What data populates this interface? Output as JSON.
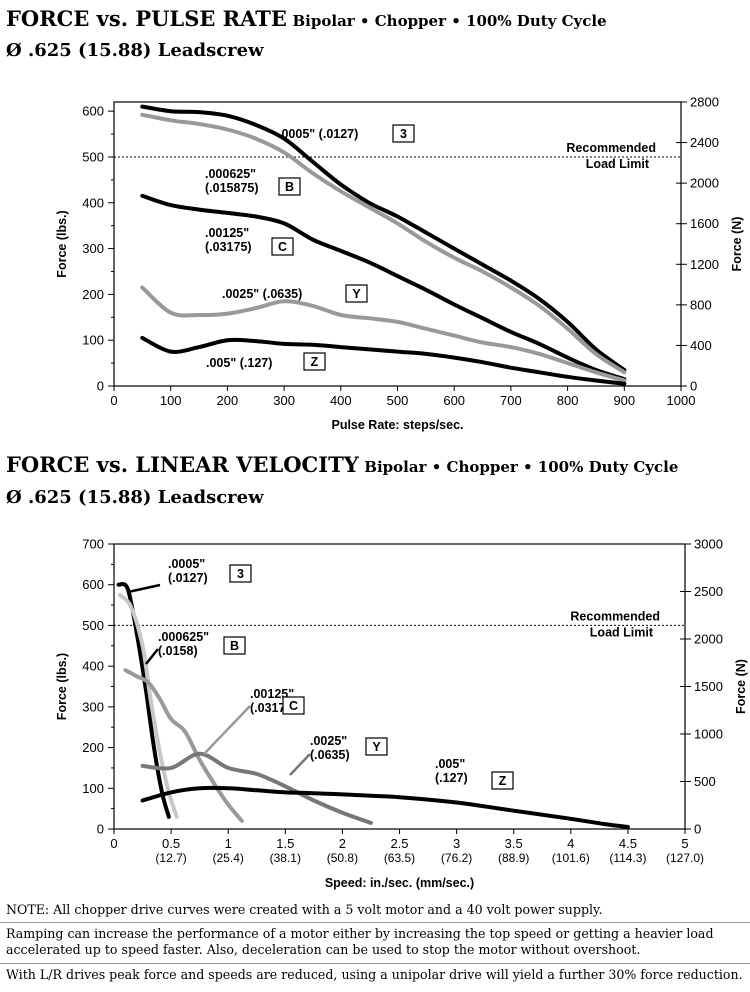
{
  "charts": [
    {
      "title_main": "FORCE vs. PULSE RATE",
      "title_sub": "Bipolar • Chopper • 100% Duty Cycle",
      "title_line2": "Ø .625 (15.88) Leadscrew"
    },
    {
      "title_main": "FORCE vs. LINEAR VELOCITY",
      "title_sub": "Bipolar • Chopper • 100% Duty Cycle",
      "title_line2": "Ø .625 (15.88) Leadscrew"
    }
  ],
  "chart_data": [
    {
      "type": "line",
      "title": "FORCE vs. PULSE RATE",
      "xlabel": "Pulse Rate:  steps/sec.",
      "ylabel": "Force (lbs.)",
      "y2label": "Force (N)",
      "xlim": [
        0,
        1000
      ],
      "ylim": [
        0,
        620
      ],
      "y2lim": [
        0,
        2800
      ],
      "xticks": [
        "0",
        "100",
        "200",
        "300",
        "400",
        "500",
        "600",
        "700",
        "800",
        "900",
        "1000"
      ],
      "yticks": [
        "0",
        "100",
        "200",
        "300",
        "400",
        "500",
        "600"
      ],
      "y2ticks": [
        "0",
        "400",
        "800",
        "1200",
        "1600",
        "2000",
        "2400",
        "2800"
      ],
      "reference_line": {
        "y": 500,
        "label_line1": "Recommended",
        "label_line2": "Load Limit"
      },
      "series": [
        {
          "name": "3",
          "label": ".0005\" (.0127)",
          "color": "#000000",
          "x": [
            50,
            100,
            150,
            200,
            250,
            300,
            350,
            400,
            450,
            500,
            550,
            600,
            650,
            700,
            750,
            800,
            850,
            900
          ],
          "y": [
            610,
            600,
            598,
            590,
            570,
            540,
            490,
            440,
            400,
            370,
            335,
            300,
            265,
            230,
            190,
            140,
            80,
            35
          ]
        },
        {
          "name": "B",
          "label": ".000625\" (.015875)",
          "color": "#999999",
          "x": [
            50,
            100,
            150,
            200,
            250,
            300,
            350,
            400,
            450,
            500,
            550,
            600,
            650,
            700,
            750,
            800,
            850,
            900
          ],
          "y": [
            592,
            580,
            572,
            560,
            540,
            510,
            465,
            425,
            390,
            355,
            315,
            280,
            250,
            215,
            175,
            125,
            70,
            30
          ]
        },
        {
          "name": "C",
          "label": ".00125\" (.03175)",
          "color": "#000000",
          "x": [
            50,
            100,
            150,
            200,
            250,
            300,
            350,
            400,
            450,
            500,
            550,
            600,
            650,
            700,
            750,
            800,
            850,
            900
          ],
          "y": [
            415,
            395,
            385,
            378,
            370,
            355,
            320,
            295,
            270,
            240,
            210,
            178,
            148,
            118,
            92,
            62,
            35,
            15
          ]
        },
        {
          "name": "Y",
          "label": ".0025\" (.0635)",
          "color": "#999999",
          "x": [
            50,
            100,
            150,
            200,
            250,
            300,
            350,
            400,
            450,
            500,
            550,
            600,
            650,
            700,
            750,
            800,
            850,
            900
          ],
          "y": [
            215,
            160,
            155,
            158,
            170,
            185,
            175,
            155,
            148,
            140,
            125,
            110,
            95,
            85,
            70,
            50,
            30,
            12
          ]
        },
        {
          "name": "Z",
          "label": ".005\" (.127)",
          "color": "#000000",
          "x": [
            50,
            100,
            150,
            200,
            250,
            300,
            350,
            400,
            450,
            500,
            550,
            600,
            650,
            700,
            750,
            800,
            850,
            900
          ],
          "y": [
            105,
            75,
            85,
            100,
            98,
            92,
            90,
            85,
            80,
            75,
            70,
            62,
            52,
            40,
            30,
            20,
            12,
            5
          ]
        }
      ]
    },
    {
      "type": "line",
      "title": "FORCE vs. LINEAR VELOCITY",
      "xlabel": "Speed:  in./sec.  (mm/sec.)",
      "ylabel": "Force (lbs.)",
      "y2label": "Force (N)",
      "xlim": [
        0,
        5
      ],
      "ylim": [
        0,
        700
      ],
      "y2lim": [
        0,
        3000
      ],
      "xticks": [
        "0",
        "0.5",
        "1",
        "1.5",
        "2",
        "2.5",
        "3",
        "3.5",
        "4",
        "4.5",
        "5"
      ],
      "xticks_mm": [
        "",
        "(12.7)",
        "(25.4)",
        "(38.1)",
        "(50.8)",
        "(63.5)",
        "(76.2)",
        "(88.9)",
        "(101.6)",
        "(114.3)",
        "(127.0)"
      ],
      "yticks": [
        "0",
        "100",
        "200",
        "300",
        "400",
        "500",
        "600",
        "700"
      ],
      "y2ticks": [
        "0",
        "500",
        "1000",
        "1500",
        "2000",
        "2500",
        "3000"
      ],
      "reference_line": {
        "y": 500,
        "label_line1": "Recommended",
        "label_line2": "Load Limit"
      },
      "series": [
        {
          "name": "3",
          "label": ".0005\" (.0127)",
          "color": "#000000",
          "x": [
            0.04,
            0.12,
            0.2,
            0.28,
            0.35,
            0.42,
            0.48
          ],
          "y": [
            600,
            590,
            480,
            340,
            200,
            90,
            30
          ]
        },
        {
          "name": "B",
          "label": ".000625\" (.0158)",
          "color": "#c8c8c8",
          "x": [
            0.05,
            0.15,
            0.25,
            0.32,
            0.4,
            0.48,
            0.55
          ],
          "y": [
            575,
            545,
            450,
            320,
            190,
            90,
            30
          ]
        },
        {
          "name": "C",
          "label": ".00125\" (.0317)",
          "color": "#999999",
          "x": [
            0.1,
            0.2,
            0.3,
            0.4,
            0.5,
            0.62,
            0.75,
            0.88,
            1.0,
            1.12
          ],
          "y": [
            390,
            375,
            360,
            320,
            270,
            240,
            170,
            110,
            60,
            20
          ]
        },
        {
          "name": "Y",
          "label": ".0025\" (.0635)",
          "color": "#777777",
          "x": [
            0.25,
            0.5,
            0.75,
            1.0,
            1.25,
            1.5,
            1.75,
            2.0,
            2.25
          ],
          "y": [
            155,
            150,
            185,
            150,
            135,
            105,
            70,
            40,
            15
          ]
        },
        {
          "name": "Z",
          "label": ".005\" (.127)",
          "color": "#000000",
          "x": [
            0.25,
            0.5,
            0.75,
            1.0,
            1.25,
            1.5,
            1.75,
            2.0,
            2.5,
            3.0,
            3.5,
            4.0,
            4.3,
            4.5
          ],
          "y": [
            70,
            90,
            100,
            100,
            95,
            90,
            88,
            85,
            78,
            65,
            45,
            25,
            12,
            5
          ]
        }
      ]
    }
  ],
  "notes": {
    "note1": "NOTE: All chopper drive curves were created with a 5 volt motor and a 40 volt power supply.",
    "note2": "Ramping can increase the performance of a motor either by increasing the top speed or getting a heavier load accelerated up to speed faster.  Also, deceleration can be used to stop the motor without overshoot.",
    "note3": "With L/R drives peak force and speeds are reduced, using a unipolar drive will yield a further 30% force reduction."
  }
}
